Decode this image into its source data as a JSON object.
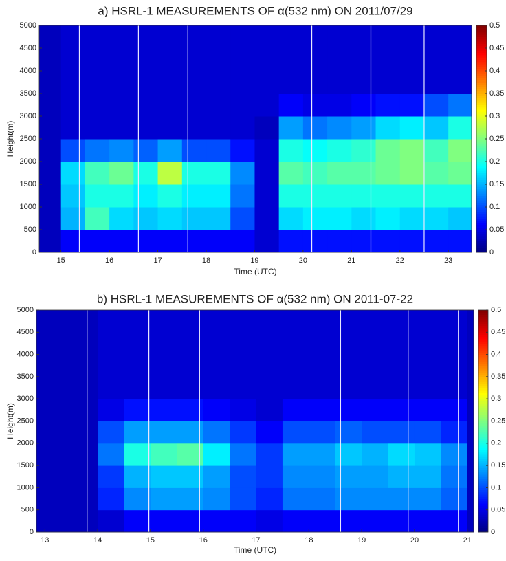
{
  "chart_data": [
    {
      "type": "heatmap",
      "title": "a) HSRL-1 MEASUREMENTS OF α(532 nm)  ON 2011/07/29",
      "xlabel": "Time (UTC)",
      "ylabel": "Height(m)",
      "colormap": "jet",
      "xlim": [
        14.55,
        23.48
      ],
      "ylim": [
        0,
        5000
      ],
      "xticks": [
        15,
        16,
        17,
        18,
        19,
        20,
        21,
        22,
        23
      ],
      "yticks": [
        0,
        500,
        1000,
        1500,
        2000,
        2500,
        3000,
        3500,
        4000,
        4500,
        5000
      ],
      "clim": [
        0,
        0.5
      ],
      "cticks": [
        0,
        0.05,
        0.1,
        0.15,
        0.2,
        0.25,
        0.3,
        0.35,
        0.4,
        0.45,
        0.5
      ],
      "xbins": [
        14.55,
        15,
        15.5,
        16,
        16.5,
        17,
        17.5,
        18,
        18.5,
        19,
        19.5,
        20,
        20.5,
        21,
        21.5,
        22,
        22.5,
        23,
        23.48
      ],
      "ybins": [
        0,
        500,
        1000,
        1500,
        2000,
        2500,
        3000,
        3500,
        4000,
        4500,
        5000
      ],
      "z": [
        [
          0.03,
          0.06,
          0.06,
          0.06,
          0.06,
          0.06,
          0.06,
          0.06,
          0.06,
          0.04,
          0.07,
          0.07,
          0.07,
          0.07,
          0.07,
          0.07,
          0.07,
          0.07
        ],
        [
          0.03,
          0.15,
          0.22,
          0.17,
          0.16,
          0.17,
          0.16,
          0.16,
          0.1,
          0.04,
          0.17,
          0.18,
          0.18,
          0.17,
          0.18,
          0.17,
          0.17,
          0.16
        ],
        [
          0.03,
          0.16,
          0.2,
          0.2,
          0.18,
          0.2,
          0.18,
          0.18,
          0.12,
          0.04,
          0.2,
          0.2,
          0.2,
          0.2,
          0.2,
          0.2,
          0.2,
          0.2
        ],
        [
          0.03,
          0.17,
          0.22,
          0.24,
          0.2,
          0.28,
          0.2,
          0.2,
          0.13,
          0.04,
          0.23,
          0.22,
          0.23,
          0.23,
          0.24,
          0.25,
          0.23,
          0.24
        ],
        [
          0.03,
          0.1,
          0.12,
          0.13,
          0.11,
          0.14,
          0.1,
          0.1,
          0.07,
          0.04,
          0.2,
          0.19,
          0.2,
          0.21,
          0.24,
          0.25,
          0.22,
          0.25
        ],
        [
          0.03,
          0.04,
          0.04,
          0.04,
          0.04,
          0.04,
          0.04,
          0.04,
          0.04,
          0.03,
          0.14,
          0.12,
          0.13,
          0.14,
          0.17,
          0.18,
          0.16,
          0.2
        ],
        [
          0.03,
          0.04,
          0.04,
          0.04,
          0.04,
          0.04,
          0.04,
          0.04,
          0.04,
          0.04,
          0.06,
          0.05,
          0.05,
          0.06,
          0.07,
          0.07,
          0.1,
          0.12
        ],
        [
          0.03,
          0.04,
          0.04,
          0.04,
          0.04,
          0.04,
          0.04,
          0.04,
          0.04,
          0.04,
          0.04,
          0.04,
          0.04,
          0.04,
          0.04,
          0.04,
          0.04,
          0.04
        ],
        [
          0.03,
          0.04,
          0.04,
          0.04,
          0.04,
          0.04,
          0.04,
          0.04,
          0.04,
          0.04,
          0.04,
          0.04,
          0.04,
          0.04,
          0.04,
          0.04,
          0.04,
          0.04
        ],
        [
          0.03,
          0.04,
          0.04,
          0.04,
          0.04,
          0.04,
          0.04,
          0.04,
          0.04,
          0.04,
          0.04,
          0.04,
          0.04,
          0.04,
          0.04,
          0.04,
          0.04,
          0.04
        ]
      ],
      "gap_lines": [
        15.38,
        16.6,
        17.62,
        20.18,
        21.4,
        22.5
      ]
    },
    {
      "type": "heatmap",
      "title": "b) HSRL-1 MEASUREMENTS OF α(532 nm) ON 2011-07-22",
      "xlabel": "Time (UTC)",
      "ylabel": "Height(m)",
      "colormap": "jet",
      "xlim": [
        12.84,
        21.12
      ],
      "ylim": [
        0,
        5000
      ],
      "xticks": [
        13,
        14,
        15,
        16,
        17,
        18,
        19,
        20,
        21
      ],
      "yticks": [
        0,
        500,
        1000,
        1500,
        2000,
        2500,
        3000,
        3500,
        4000,
        4500,
        5000
      ],
      "clim": [
        0,
        0.5
      ],
      "cticks": [
        0,
        0.05,
        0.1,
        0.15,
        0.2,
        0.25,
        0.3,
        0.35,
        0.4,
        0.45,
        0.5
      ],
      "xbins": [
        12.84,
        13,
        13.5,
        14,
        14.5,
        15,
        15.5,
        16,
        16.5,
        17,
        17.5,
        18,
        18.5,
        19,
        19.5,
        20,
        20.5,
        21,
        21.12
      ],
      "ybins": [
        0,
        500,
        1000,
        1500,
        2000,
        2500,
        3000,
        3500,
        4000,
        4500,
        5000
      ],
      "z": [
        [
          0.03,
          0.03,
          0.03,
          0.04,
          0.06,
          0.06,
          0.06,
          0.06,
          0.06,
          0.05,
          0.06,
          0.06,
          0.06,
          0.06,
          0.06,
          0.06,
          0.06,
          0.03
        ],
        [
          0.03,
          0.03,
          0.03,
          0.08,
          0.13,
          0.14,
          0.14,
          0.13,
          0.1,
          0.08,
          0.12,
          0.12,
          0.13,
          0.13,
          0.13,
          0.13,
          0.11,
          0.03
        ],
        [
          0.03,
          0.03,
          0.03,
          0.09,
          0.15,
          0.16,
          0.16,
          0.14,
          0.1,
          0.09,
          0.13,
          0.13,
          0.14,
          0.14,
          0.15,
          0.15,
          0.12,
          0.03
        ],
        [
          0.03,
          0.03,
          0.03,
          0.12,
          0.2,
          0.22,
          0.23,
          0.18,
          0.12,
          0.09,
          0.14,
          0.14,
          0.16,
          0.15,
          0.17,
          0.16,
          0.13,
          0.03
        ],
        [
          0.03,
          0.03,
          0.03,
          0.1,
          0.14,
          0.14,
          0.14,
          0.12,
          0.09,
          0.06,
          0.1,
          0.1,
          0.11,
          0.1,
          0.1,
          0.1,
          0.08,
          0.03
        ],
        [
          0.03,
          0.03,
          0.03,
          0.05,
          0.07,
          0.07,
          0.07,
          0.06,
          0.05,
          0.04,
          0.06,
          0.06,
          0.06,
          0.06,
          0.06,
          0.06,
          0.06,
          0.03
        ],
        [
          0.03,
          0.03,
          0.03,
          0.04,
          0.04,
          0.04,
          0.04,
          0.04,
          0.04,
          0.04,
          0.04,
          0.04,
          0.04,
          0.04,
          0.04,
          0.04,
          0.04,
          0.03
        ],
        [
          0.03,
          0.03,
          0.03,
          0.04,
          0.04,
          0.04,
          0.04,
          0.04,
          0.04,
          0.04,
          0.04,
          0.04,
          0.04,
          0.04,
          0.04,
          0.04,
          0.04,
          0.03
        ],
        [
          0.03,
          0.03,
          0.03,
          0.04,
          0.04,
          0.04,
          0.04,
          0.04,
          0.04,
          0.04,
          0.04,
          0.04,
          0.04,
          0.04,
          0.04,
          0.04,
          0.04,
          0.03
        ],
        [
          0.03,
          0.03,
          0.03,
          0.04,
          0.04,
          0.04,
          0.04,
          0.04,
          0.04,
          0.04,
          0.04,
          0.04,
          0.04,
          0.04,
          0.04,
          0.04,
          0.04,
          0.03
        ]
      ],
      "gap_lines": [
        13.8,
        14.97,
        15.93,
        18.6,
        19.88,
        20.83
      ]
    }
  ]
}
